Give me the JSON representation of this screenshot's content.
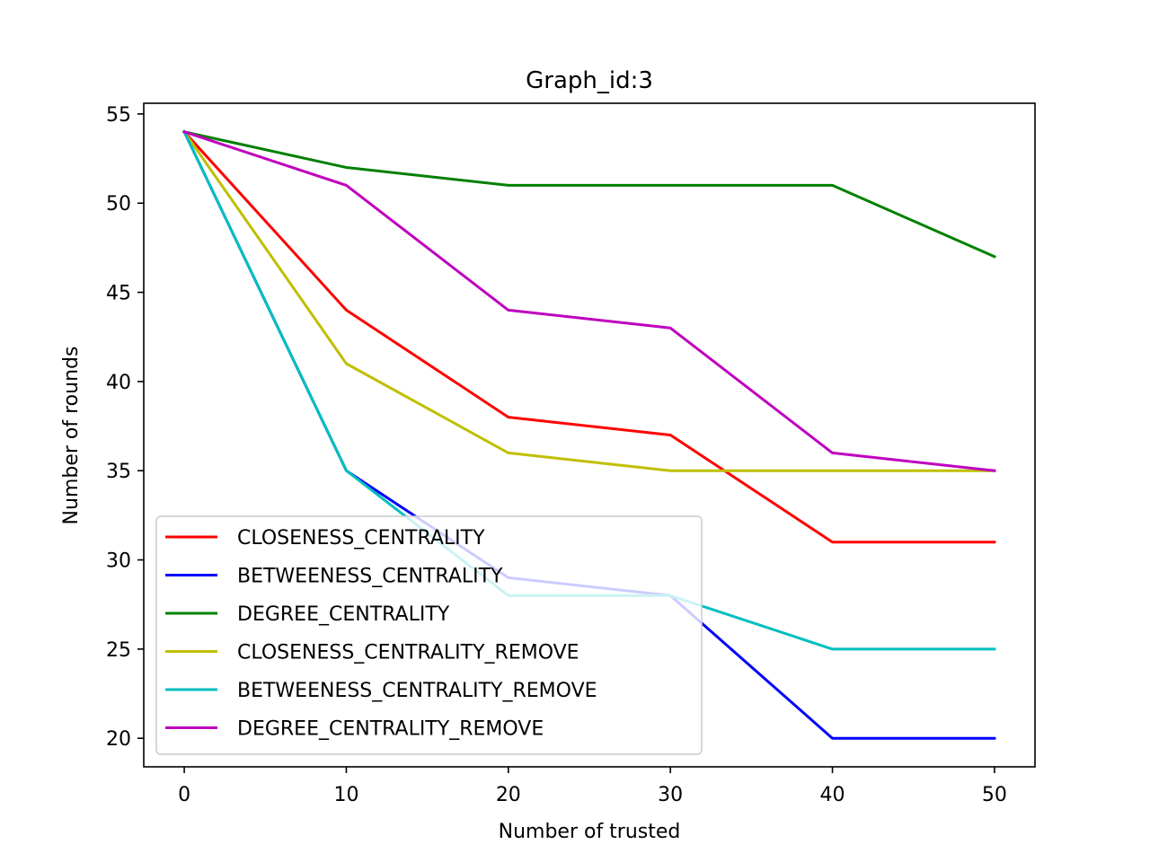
{
  "chart_data": {
    "type": "line",
    "title": "Graph_id:3",
    "xlabel": "Number of trusted",
    "ylabel": "Number of rounds",
    "x": [
      0,
      10,
      20,
      30,
      40,
      50
    ],
    "xlim": [
      -2.5,
      52.5
    ],
    "ylim": [
      18.4,
      55.6
    ],
    "xticks": [
      0,
      10,
      20,
      30,
      40,
      50
    ],
    "yticks": [
      20,
      25,
      30,
      35,
      40,
      45,
      50,
      55
    ],
    "grid": false,
    "legend_position": "lower-left",
    "series": [
      {
        "name": "CLOSENESS_CENTRALITY",
        "color": "#ff0000",
        "values": [
          54,
          44,
          38,
          37,
          31,
          31
        ]
      },
      {
        "name": "BETWEENESS_CENTRALITY",
        "color": "#0000ff",
        "values": [
          54,
          35,
          29,
          28,
          20,
          20
        ]
      },
      {
        "name": "DEGREE_CENTRALITY",
        "color": "#008000",
        "values": [
          54,
          52,
          51,
          51,
          51,
          47
        ]
      },
      {
        "name": "CLOSENESS_CENTRALITY_REMOVE",
        "color": "#bfbf00",
        "values": [
          54,
          41,
          36,
          35,
          35,
          35
        ]
      },
      {
        "name": "BETWEENESS_CENTRALITY_REMOVE",
        "color": "#00bfbf",
        "values": [
          54,
          35,
          28,
          28,
          25,
          25
        ]
      },
      {
        "name": "DEGREE_CENTRALITY_REMOVE",
        "color": "#bf00bf",
        "values": [
          54,
          51,
          44,
          43,
          36,
          35
        ]
      }
    ]
  }
}
